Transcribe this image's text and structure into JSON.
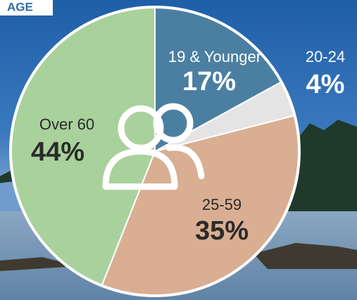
{
  "chart_data": {
    "type": "pie",
    "title": "AGE",
    "categories": [
      "19 & Younger",
      "20-24",
      "25-59",
      "Over 60"
    ],
    "values": [
      17,
      4,
      35,
      44
    ],
    "value_labels": [
      "17%",
      "4%",
      "35%",
      "44%"
    ],
    "colors": [
      "#4b7fa1",
      "#e4e4e4",
      "#d9ae92",
      "#a9d19c"
    ]
  }
}
